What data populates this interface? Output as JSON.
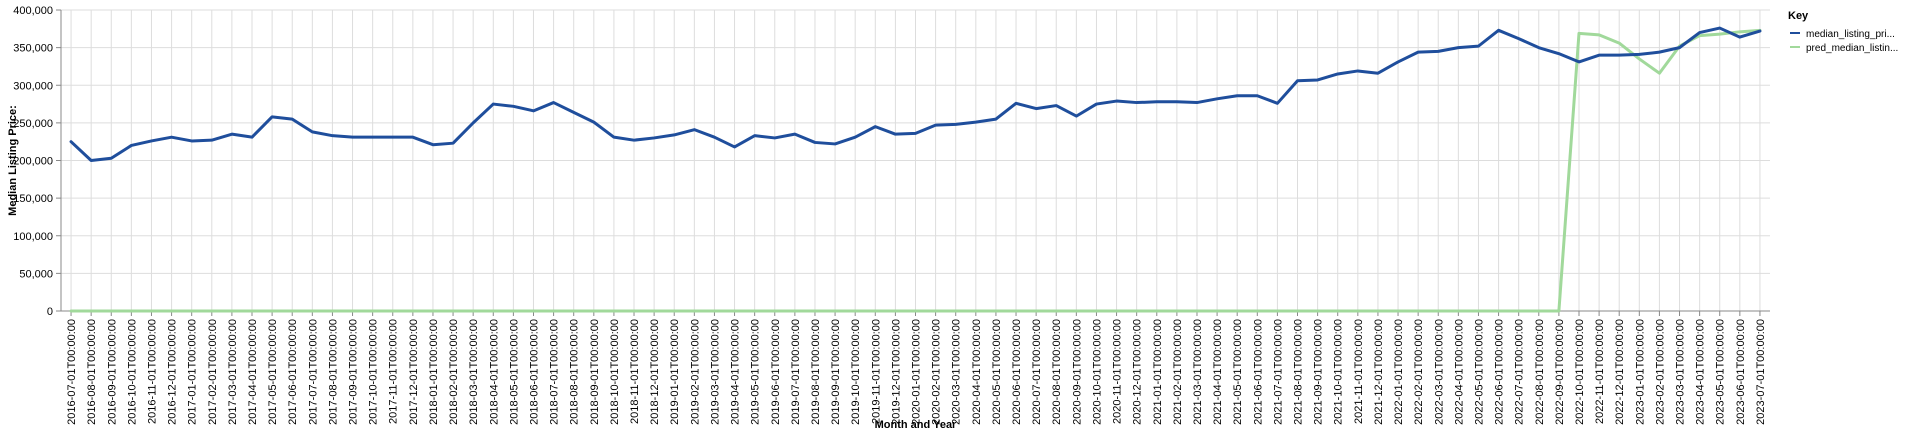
{
  "chart_data": {
    "type": "line",
    "xlabel": "Month and Year",
    "ylabel": "Median Listing Price:",
    "ylim": [
      0,
      400000
    ],
    "yticks": [
      0,
      50000,
      100000,
      150000,
      200000,
      250000,
      300000,
      350000,
      400000
    ],
    "grid": true,
    "legend": {
      "title": "Key",
      "placement": "right"
    },
    "categories": [
      "2016-07-01T00:00:00",
      "2016-08-01T00:00:00",
      "2016-09-01T00:00:00",
      "2016-10-01T00:00:00",
      "2016-11-01T00:00:00",
      "2016-12-01T00:00:00",
      "2017-01-01T00:00:00",
      "2017-02-01T00:00:00",
      "2017-03-01T00:00:00",
      "2017-04-01T00:00:00",
      "2017-05-01T00:00:00",
      "2017-06-01T00:00:00",
      "2017-07-01T00:00:00",
      "2017-08-01T00:00:00",
      "2017-09-01T00:00:00",
      "2017-10-01T00:00:00",
      "2017-11-01T00:00:00",
      "2017-12-01T00:00:00",
      "2018-01-01T00:00:00",
      "2018-02-01T00:00:00",
      "2018-03-01T00:00:00",
      "2018-04-01T00:00:00",
      "2018-05-01T00:00:00",
      "2018-06-01T00:00:00",
      "2018-07-01T00:00:00",
      "2018-08-01T00:00:00",
      "2018-09-01T00:00:00",
      "2018-10-01T00:00:00",
      "2018-11-01T00:00:00",
      "2018-12-01T00:00:00",
      "2019-01-01T00:00:00",
      "2019-02-01T00:00:00",
      "2019-03-01T00:00:00",
      "2019-04-01T00:00:00",
      "2019-05-01T00:00:00",
      "2019-06-01T00:00:00",
      "2019-07-01T00:00:00",
      "2019-08-01T00:00:00",
      "2019-09-01T00:00:00",
      "2019-10-01T00:00:00",
      "2019-11-01T00:00:00",
      "2019-12-01T00:00:00",
      "2020-01-01T00:00:00",
      "2020-02-01T00:00:00",
      "2020-03-01T00:00:00",
      "2020-04-01T00:00:00",
      "2020-05-01T00:00:00",
      "2020-06-01T00:00:00",
      "2020-07-01T00:00:00",
      "2020-08-01T00:00:00",
      "2020-09-01T00:00:00",
      "2020-10-01T00:00:00",
      "2020-11-01T00:00:00",
      "2020-12-01T00:00:00",
      "2021-01-01T00:00:00",
      "2021-02-01T00:00:00",
      "2021-03-01T00:00:00",
      "2021-04-01T00:00:00",
      "2021-05-01T00:00:00",
      "2021-06-01T00:00:00",
      "2021-07-01T00:00:00",
      "2021-08-01T00:00:00",
      "2021-09-01T00:00:00",
      "2021-10-01T00:00:00",
      "2021-11-01T00:00:00",
      "2021-12-01T00:00:00",
      "2022-01-01T00:00:00",
      "2022-02-01T00:00:00",
      "2022-03-01T00:00:00",
      "2022-04-01T00:00:00",
      "2022-05-01T00:00:00",
      "2022-06-01T00:00:00",
      "2022-07-01T00:00:00",
      "2022-08-01T00:00:00",
      "2022-09-01T00:00:00",
      "2022-10-01T00:00:00",
      "2022-11-01T00:00:00",
      "2022-12-01T00:00:00",
      "2023-01-01T00:00:00",
      "2023-02-01T00:00:00",
      "2023-03-01T00:00:00",
      "2023-04-01T00:00:00",
      "2023-05-01T00:00:00",
      "2023-06-01T00:00:00",
      "2023-07-01T00:00:00"
    ],
    "series": [
      {
        "name": "median_listing_pri...",
        "color": "#1f4e9c",
        "values": [
          225000,
          200000,
          203000,
          220000,
          226000,
          231000,
          226000,
          227000,
          235000,
          231000,
          258000,
          255000,
          238000,
          233000,
          231000,
          231000,
          231000,
          231000,
          221000,
          223000,
          250000,
          275000,
          272000,
          266000,
          277000,
          264000,
          251000,
          231000,
          227000,
          230000,
          234000,
          241000,
          231000,
          218000,
          233000,
          230000,
          235000,
          224000,
          222000,
          231000,
          245000,
          235000,
          236000,
          247000,
          248000,
          251000,
          255000,
          276000,
          269000,
          273000,
          259000,
          275000,
          279000,
          277000,
          278000,
          278000,
          277000,
          282000,
          286000,
          286000,
          276000,
          306000,
          307000,
          315000,
          319000,
          316000,
          331000,
          344000,
          345000,
          350000,
          352000,
          373000,
          362000,
          350000,
          342000,
          331000,
          340000,
          340000,
          341000,
          344000,
          350000,
          370000,
          376000,
          364000,
          372000
        ]
      },
      {
        "name": "pred_median_listin...",
        "color": "#a1d99b",
        "values": [
          0,
          0,
          0,
          0,
          0,
          0,
          0,
          0,
          0,
          0,
          0,
          0,
          0,
          0,
          0,
          0,
          0,
          0,
          0,
          0,
          0,
          0,
          0,
          0,
          0,
          0,
          0,
          0,
          0,
          0,
          0,
          0,
          0,
          0,
          0,
          0,
          0,
          0,
          0,
          0,
          0,
          0,
          0,
          0,
          0,
          0,
          0,
          0,
          0,
          0,
          0,
          0,
          0,
          0,
          0,
          0,
          0,
          0,
          0,
          0,
          0,
          0,
          0,
          0,
          0,
          0,
          0,
          0,
          0,
          0,
          0,
          0,
          0,
          0,
          0,
          369000,
          367000,
          356000,
          335000,
          316000,
          352000,
          366000,
          368000,
          371000,
          373000
        ]
      }
    ]
  }
}
